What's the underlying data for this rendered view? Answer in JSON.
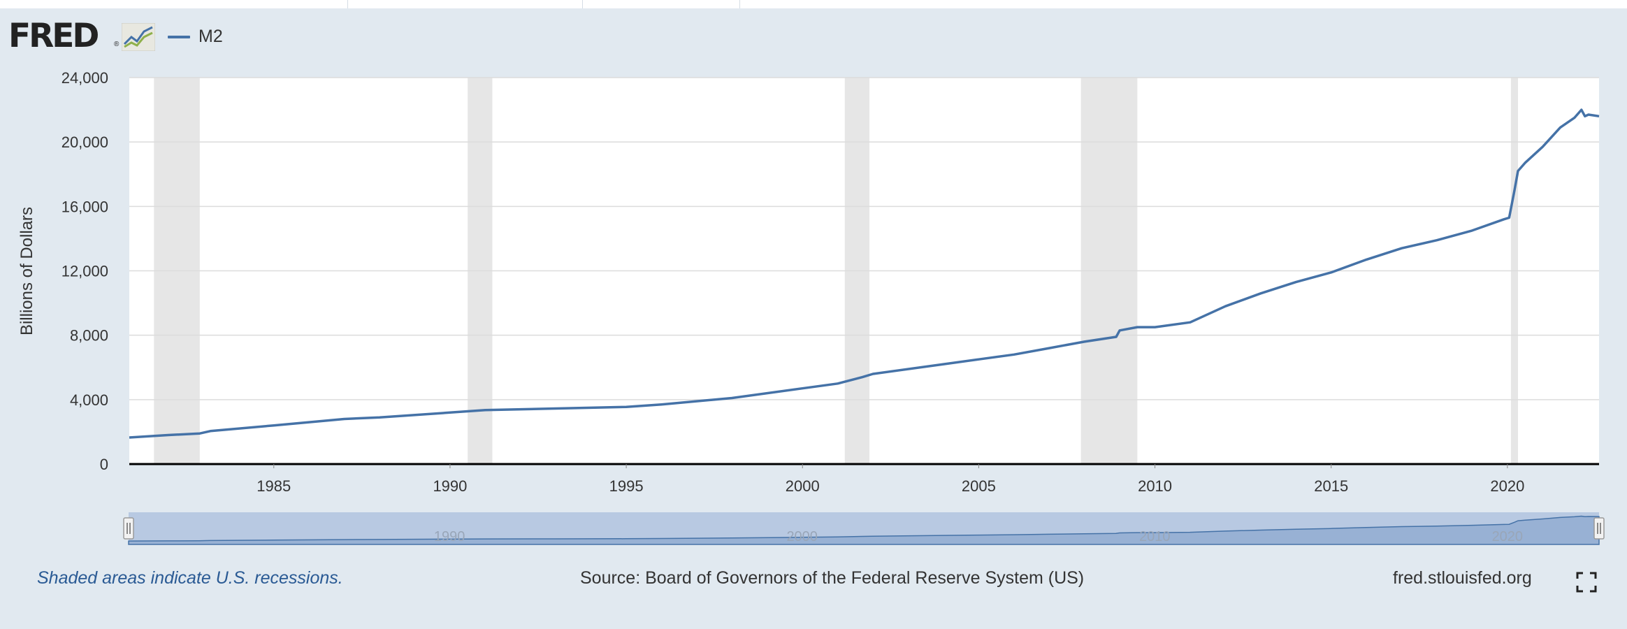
{
  "header": {
    "logo_text": "FRED",
    "logo_reg": "®",
    "legend_label": "M2"
  },
  "colors": {
    "series": "#4572a7",
    "recession": "#e6e6e6",
    "navigator_fill": "#b8c9e2",
    "page_bg": "#e1e9f0"
  },
  "footer": {
    "note": "Shaded areas indicate U.S. recessions.",
    "source": "Source: Board of Governors of the Federal Reserve System (US)",
    "site": "fred.stlouisfed.org"
  },
  "icons": {
    "logo_graph": "fred-graph-icon",
    "fullscreen": "fullscreen-icon"
  },
  "chart_data": {
    "type": "line",
    "title": "",
    "ylabel": "Billions of Dollars",
    "xlabel": "",
    "xlim": [
      1980.9,
      2022.6
    ],
    "ylim": [
      0,
      24000
    ],
    "x_ticks": [
      1985,
      1990,
      1995,
      2000,
      2005,
      2010,
      2015,
      2020
    ],
    "x_tick_labels": [
      "1985",
      "1990",
      "1995",
      "2000",
      "2005",
      "2010",
      "2015",
      "2020"
    ],
    "y_ticks": [
      0,
      4000,
      8000,
      12000,
      16000,
      20000,
      24000
    ],
    "y_tick_labels": [
      "0",
      "4,000",
      "8,000",
      "12,000",
      "16,000",
      "20,000",
      "24,000"
    ],
    "grid": true,
    "recessions": [
      [
        1981.6,
        1982.9
      ],
      [
        1990.5,
        1991.2
      ],
      [
        2001.2,
        2001.9
      ],
      [
        2007.9,
        2009.5
      ],
      [
        2020.1,
        2020.3
      ]
    ],
    "navigator_tick_labels": [
      "1990",
      "2000",
      "2010",
      "2020"
    ],
    "series": [
      {
        "name": "M2",
        "x": [
          1980.9,
          1982.0,
          1982.9,
          1983.2,
          1985.0,
          1987.0,
          1988.0,
          1990.0,
          1991.0,
          1993.0,
          1995.0,
          1996.0,
          1998.0,
          2000.0,
          2001.0,
          2001.7,
          2002.0,
          2004.0,
          2005.0,
          2006.0,
          2007.0,
          2008.0,
          2008.9,
          2009.0,
          2009.5,
          2010.0,
          2011.0,
          2012.0,
          2013.0,
          2014.0,
          2015.0,
          2016.0,
          2017.0,
          2018.0,
          2019.0,
          2019.9,
          2020.05,
          2020.2,
          2020.3,
          2020.5,
          2021.0,
          2021.5,
          2021.9,
          2022.1,
          2022.2,
          2022.3,
          2022.6
        ],
        "y": [
          1650,
          1800,
          1900,
          2050,
          2400,
          2800,
          2900,
          3200,
          3350,
          3450,
          3550,
          3700,
          4100,
          4700,
          5000,
          5400,
          5600,
          6200,
          6500,
          6800,
          7200,
          7600,
          7900,
          8300,
          8500,
          8500,
          8800,
          9800,
          10600,
          11300,
          11900,
          12700,
          13400,
          13900,
          14500,
          15200,
          15300,
          17000,
          18200,
          18700,
          19700,
          20900,
          21500,
          22000,
          21600,
          21700,
          21600
        ]
      }
    ]
  }
}
